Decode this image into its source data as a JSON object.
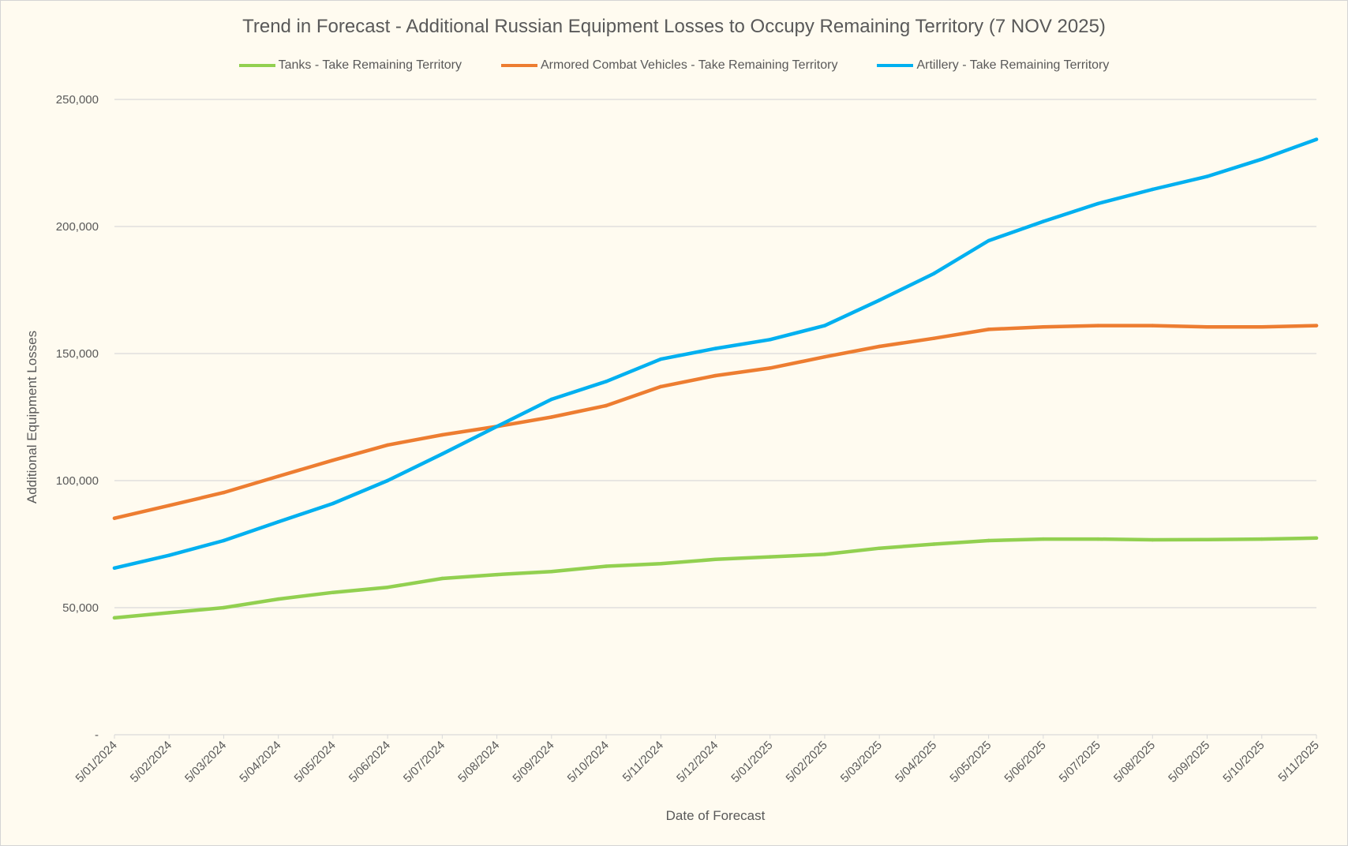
{
  "chart_data": {
    "type": "line",
    "title": "Trend in Forecast - Additional Russian Equipment Losses to Occupy Remaining Territory (7 NOV 2025)",
    "xlabel": "Date of Forecast",
    "ylabel": "Additional Equipment Losses",
    "ylim": [
      0,
      250000
    ],
    "yticks": [
      0,
      50000,
      100000,
      150000,
      200000,
      250000
    ],
    "ytick_labels": [
      "-",
      "50,000",
      "100,000",
      "150,000",
      "200,000",
      "250,000"
    ],
    "grid": "horizontal",
    "legend_position": "top",
    "categories": [
      "5/01/2024",
      "5/02/2024",
      "5/03/2024",
      "5/04/2024",
      "5/05/2024",
      "5/06/2024",
      "5/07/2024",
      "5/08/2024",
      "5/09/2024",
      "5/10/2024",
      "5/11/2024",
      "5/12/2024",
      "5/01/2025",
      "5/02/2025",
      "5/03/2025",
      "5/04/2025",
      "5/05/2025",
      "5/06/2025",
      "5/07/2025",
      "5/08/2025",
      "5/09/2025",
      "5/10/2025",
      "5/11/2025"
    ],
    "series": [
      {
        "name": "Tanks - Take Remaining Territory",
        "color": "#92d050",
        "values": [
          46000,
          48000,
          50000,
          53400,
          56000,
          58000,
          61500,
          63000,
          64200,
          66300,
          67300,
          69000,
          70000,
          71000,
          73400,
          75000,
          76400,
          77000,
          77000,
          76700,
          76800,
          77000,
          77400
        ]
      },
      {
        "name": "Armored Combat Vehicles - Take Remaining Territory",
        "color": "#ed7d31",
        "values": [
          85200,
          90200,
          95300,
          101700,
          108000,
          114000,
          118000,
          121300,
          125000,
          129500,
          137000,
          141300,
          144300,
          148700,
          152800,
          156000,
          159500,
          160500,
          161000,
          161000,
          160500,
          160500,
          161000
        ]
      },
      {
        "name": "Artillery - Take Remaining Territory",
        "color": "#00b0f0",
        "values": [
          65600,
          70600,
          76400,
          83800,
          91000,
          100000,
          110500,
          121300,
          132000,
          139000,
          147800,
          152000,
          155500,
          161000,
          171000,
          181500,
          194400,
          202000,
          209000,
          214600,
          219700,
          226500,
          234300
        ]
      }
    ]
  }
}
